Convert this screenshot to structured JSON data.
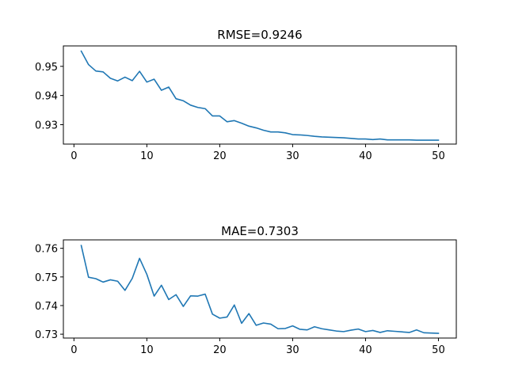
{
  "chart_data": [
    {
      "type": "line",
      "title": "RMSE=0.9246",
      "xlabel": "",
      "ylabel": "",
      "xlim": [
        -1.45,
        52.45
      ],
      "ylim": [
        0.92335,
        0.957
      ],
      "grid": false,
      "xticks": [
        0,
        10,
        20,
        30,
        40,
        50
      ],
      "yticks": [
        0.93,
        0.94,
        0.95
      ],
      "xtick_labels": [
        "0",
        "10",
        "20",
        "30",
        "40",
        "50"
      ],
      "ytick_labels": [
        "0.93",
        "0.94",
        "0.95"
      ],
      "color": "#1f77b4",
      "x": [
        1,
        2,
        3,
        4,
        5,
        6,
        7,
        8,
        9,
        10,
        11,
        12,
        13,
        14,
        15,
        16,
        17,
        18,
        19,
        20,
        21,
        22,
        23,
        24,
        25,
        26,
        27,
        28,
        29,
        30,
        31,
        32,
        33,
        34,
        35,
        36,
        37,
        38,
        39,
        40,
        41,
        42,
        43,
        44,
        45,
        46,
        47,
        48,
        49,
        50
      ],
      "values": [
        0.9552,
        0.9506,
        0.9484,
        0.9481,
        0.9459,
        0.945,
        0.9463,
        0.9451,
        0.9483,
        0.9446,
        0.9456,
        0.9418,
        0.9429,
        0.9389,
        0.9382,
        0.9367,
        0.9359,
        0.9355,
        0.933,
        0.933,
        0.931,
        0.9314,
        0.9305,
        0.9295,
        0.9289,
        0.9281,
        0.9275,
        0.9275,
        0.9272,
        0.9266,
        0.9265,
        0.9263,
        0.926,
        0.9258,
        0.9257,
        0.9256,
        0.9255,
        0.9253,
        0.9251,
        0.9251,
        0.9249,
        0.9251,
        0.9248,
        0.9248,
        0.9248,
        0.9248,
        0.9247,
        0.9247,
        0.9247,
        0.9247
      ]
    },
    {
      "type": "line",
      "title": "MAE=0.7303",
      "xlabel": "",
      "ylabel": "",
      "xlim": [
        -1.45,
        52.45
      ],
      "ylim": [
        0.72865,
        0.76295
      ],
      "grid": false,
      "xticks": [
        0,
        10,
        20,
        30,
        40,
        50
      ],
      "yticks": [
        0.73,
        0.74,
        0.75,
        0.76
      ],
      "xtick_labels": [
        "0",
        "10",
        "20",
        "30",
        "40",
        "50"
      ],
      "ytick_labels": [
        "0.73",
        "0.74",
        "0.75",
        "0.76"
      ],
      "color": "#1f77b4",
      "x": [
        1,
        2,
        3,
        4,
        5,
        6,
        7,
        8,
        9,
        10,
        11,
        12,
        13,
        14,
        15,
        16,
        17,
        18,
        19,
        20,
        21,
        22,
        23,
        24,
        25,
        26,
        27,
        28,
        29,
        30,
        31,
        32,
        33,
        34,
        35,
        36,
        37,
        38,
        39,
        40,
        41,
        42,
        43,
        44,
        45,
        46,
        47,
        48,
        49,
        50
      ],
      "values": [
        0.761,
        0.7499,
        0.7494,
        0.7482,
        0.749,
        0.7485,
        0.7453,
        0.7495,
        0.7565,
        0.7509,
        0.7433,
        0.7471,
        0.7421,
        0.7438,
        0.7397,
        0.7434,
        0.7433,
        0.744,
        0.737,
        0.7356,
        0.736,
        0.7402,
        0.7338,
        0.7372,
        0.7331,
        0.7339,
        0.7335,
        0.7319,
        0.732,
        0.7329,
        0.7317,
        0.7315,
        0.7326,
        0.7319,
        0.7315,
        0.7311,
        0.7309,
        0.7314,
        0.7318,
        0.7309,
        0.7313,
        0.7306,
        0.7312,
        0.731,
        0.7308,
        0.7306,
        0.7315,
        0.7305,
        0.7304,
        0.7303
      ]
    }
  ]
}
